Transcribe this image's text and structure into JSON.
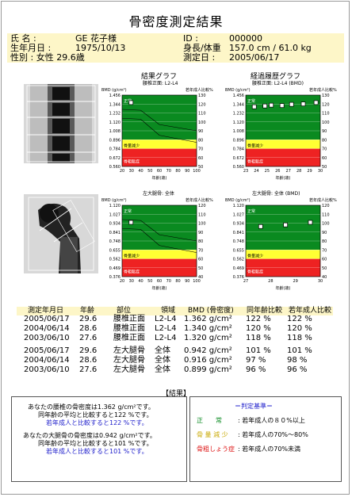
{
  "title": "骨密度測定結果",
  "patient": {
    "name_label": "氏 名 :",
    "name_value": "GE 花子様",
    "dob_label": "生年月日 :",
    "dob_value": "1975/10/13",
    "sex_age": "性別 : 女性 29.6歳",
    "id_label": "ID :",
    "id_value": "000000",
    "hw_label": "身長/体重",
    "hw_value": "157.0 cm / 61.0 kg",
    "date_label": "測定日 :",
    "date_value": "2005/06/17"
  },
  "charts_common": {
    "bmd_unit": "BMD (g/cm²)",
    "ratio_label": "若年成人比較%",
    "age_axis": "年齢(歳)",
    "zone_normal": "正常",
    "zone_osteopenia": "骨量減少",
    "zone_osteoporosis": "骨粗鬆症"
  },
  "spine_titles": {
    "result_graph": "結果グラフ",
    "result_sub": "腰椎正面: L2-L4",
    "trend_graph": "経過履歴グラフ",
    "trend_sub": "腰椎正面: L2-L4 (BMD)"
  },
  "femur_titles": {
    "result_sub": "左大腿骨: 全体",
    "trend_sub": "左大腿骨: 全体 (BMD)"
  },
  "chart_data": [
    {
      "type": "line",
      "title": "結果グラフ",
      "subtitle": "腰椎正面: L2-L4",
      "xlabel": "年齢(歳)",
      "ylabel": "BMD (g/cm²)",
      "y2label": "若年成人比較%",
      "xlim": [
        20,
        100
      ],
      "ylim": [
        0.56,
        1.456
      ],
      "x_ticks": [
        20,
        30,
        40,
        50,
        60,
        70,
        80,
        90,
        100
      ],
      "y_ticks": [
        "1.456",
        "1.344",
        "1.232",
        "1.120",
        "1.008",
        "0.896",
        "0.784",
        "0.672",
        "0.560"
      ],
      "y2_ticks": [
        "130",
        "120",
        "110",
        "100",
        "90",
        "80",
        "70",
        "60",
        "50"
      ],
      "patient_point": {
        "x": 29.6,
        "y": 1.362
      }
    },
    {
      "type": "scatter",
      "title": "経過履歴グラフ",
      "subtitle": "腰椎正面: L2-L4 (BMD)",
      "xlabel": "年齢(歳)",
      "ylabel": "BMD (g/cm²)",
      "y2label": "若年成人比較%",
      "xlim": [
        23,
        30
      ],
      "ylim": [
        0.56,
        1.456
      ],
      "x_ticks": [
        23,
        24,
        25,
        26,
        27,
        28,
        29,
        30
      ],
      "y_ticks": [
        "1.456",
        "1.344",
        "1.232",
        "1.120",
        "1.008",
        "0.896",
        "0.784",
        "0.672",
        "0.560"
      ],
      "y2_ticks": [
        "130",
        "120",
        "110",
        "100",
        "90",
        "80",
        "70",
        "60",
        "50"
      ],
      "points": [
        {
          "x": 23.8,
          "y": 1.31
        },
        {
          "x": 24.8,
          "y": 1.32
        },
        {
          "x": 25.4,
          "y": 1.33
        },
        {
          "x": 26.4,
          "y": 1.325
        },
        {
          "x": 27.3,
          "y": 1.34
        },
        {
          "x": 28.4,
          "y": 1.345
        },
        {
          "x": 29.6,
          "y": 1.362
        }
      ]
    },
    {
      "type": "line",
      "title": "",
      "subtitle": "左大腿骨: 全体",
      "xlabel": "年齢(歳)",
      "ylabel": "BMD (g/cm²)",
      "y2label": "若年成人比較%",
      "xlim": [
        20,
        100
      ],
      "ylim": [
        0.376,
        1.12
      ],
      "x_ticks": [
        20,
        30,
        40,
        50,
        60,
        70,
        80,
        90,
        100
      ],
      "y_ticks": [
        "1.120",
        "1.027",
        "0.934",
        "0.841",
        "0.748",
        "0.655",
        "0.562",
        "0.469",
        "0.376"
      ],
      "y2_ticks": [
        "120",
        "110",
        "100",
        "90",
        "80",
        "70",
        "60",
        "50",
        "40"
      ],
      "patient_point": {
        "x": 29.6,
        "y": 0.942
      }
    },
    {
      "type": "scatter",
      "title": "",
      "subtitle": "左大腿骨: 全体 (BMD)",
      "xlabel": "年齢(歳)",
      "ylabel": "BMD (g/cm²)",
      "y2label": "若年成人比較%",
      "xlim": [
        27,
        30
      ],
      "ylim": [
        0.376,
        1.12
      ],
      "x_ticks": [
        27,
        28,
        29,
        30
      ],
      "y_ticks": [
        "1.120",
        "1.027",
        "0.934",
        "0.841",
        "0.748",
        "0.655",
        "0.562",
        "0.469",
        "0.376"
      ],
      "y2_ticks": [
        "120",
        "110",
        "100",
        "90",
        "80",
        "70",
        "60",
        "50",
        "40"
      ],
      "points": [
        {
          "x": 27.6,
          "y": 0.899
        },
        {
          "x": 28.6,
          "y": 0.916
        },
        {
          "x": 29.6,
          "y": 0.942
        }
      ]
    }
  ],
  "table": {
    "headers": [
      "測定年月日",
      "年齢",
      "部位",
      "領域",
      "BMD (骨密度)",
      "同年齢比較",
      "若年成人比較"
    ],
    "rows": [
      [
        "2005/06/17",
        "29.6",
        "腰椎正面",
        "L2-L4",
        "1.362 g/cm²",
        "122 %",
        "122 %"
      ],
      [
        "2004/06/14",
        "28.6",
        "腰椎正面",
        "L2-L4",
        "1.340 g/cm²",
        "120 %",
        "120 %"
      ],
      [
        "2003/06/10",
        "27.6",
        "腰椎正面",
        "L2-L4",
        "1.320 g/cm²",
        "118 %",
        "118 %"
      ],
      [
        "2005/06/17",
        "29.6",
        "左大腿骨",
        "全体",
        "0.942 g/cm²",
        "101 %",
        "101 %"
      ],
      [
        "2004/06/14",
        "28.6",
        "左大腿骨",
        "全体",
        "0.916 g/cm²",
        "97 %",
        "98 %"
      ],
      [
        "2003/06/10",
        "27.6",
        "左大腿骨",
        "全体",
        "0.899 g/cm²",
        "96 %",
        "96 %"
      ]
    ]
  },
  "result": {
    "label": "【結果】",
    "spine_line1": "あなたの腰椎の骨密度は1.362 g/cm²です。",
    "spine_line2": "同年齢の平均と比較すると122 %です。",
    "spine_line3": "若年成人と比較すると122 %です。",
    "femur_line1": "あなたの大腿骨の骨密度は0.942 g/cm²です。",
    "femur_line2": "同年齢の平均と比較すると101 %です。",
    "femur_line3": "若年成人と比較すると101 %です。"
  },
  "criteria": {
    "title": "＝判定基準＝",
    "normal_label": "正　　常",
    "normal_text": ": 若年成人の８０%以上",
    "osteopenia_label": "骨 量 減 少",
    "osteopenia_text": ": 若年成人の70%〜80%",
    "osteoporosis_label": "骨粗しょう症",
    "osteoporosis_text": ": 若年成人の70%未満"
  },
  "colors": {
    "green": "#0a8a20",
    "yellow": "#ffff33",
    "red": "#ee2222",
    "header_bg": "#fdf6c8",
    "blue_text": "#2222cc"
  }
}
